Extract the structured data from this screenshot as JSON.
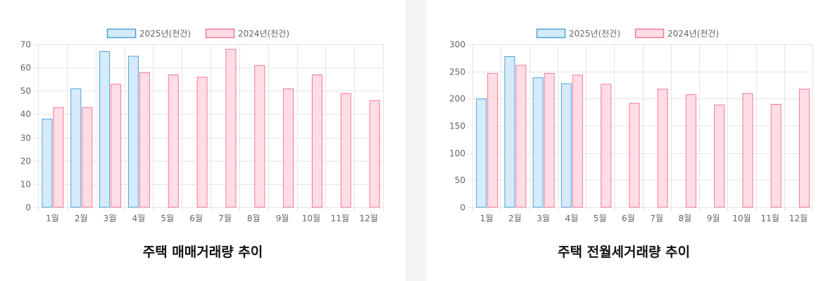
{
  "colors": {
    "series_2025_fill": "#d6ebfa",
    "series_2025_stroke": "#4fa3db",
    "series_2024_fill": "#ffdde4",
    "series_2024_stroke": "#f07a95",
    "grid": "#e6e6e6",
    "axis_text": "#666666"
  },
  "chart_data": [
    {
      "type": "bar",
      "title": "주택 매매거래량 추이",
      "categories": [
        "1월",
        "2월",
        "3월",
        "4월",
        "5월",
        "6월",
        "7월",
        "8월",
        "9월",
        "10월",
        "11월",
        "12월"
      ],
      "series": [
        {
          "name": "2025년(천건)",
          "values": [
            38,
            51,
            67,
            65,
            null,
            null,
            null,
            null,
            null,
            null,
            null,
            null
          ]
        },
        {
          "name": "2024년(천건)",
          "values": [
            43,
            43,
            53,
            58,
            57,
            56,
            68,
            61,
            51,
            57,
            49,
            46
          ]
        }
      ],
      "ylim": [
        0,
        70
      ],
      "yticks": [
        0,
        10,
        20,
        30,
        40,
        50,
        60,
        70
      ],
      "grid": true,
      "legend": "top-center"
    },
    {
      "type": "bar",
      "title": "주택 전월세거래량 추이",
      "categories": [
        "1월",
        "2월",
        "3월",
        "4월",
        "5월",
        "6월",
        "7월",
        "8월",
        "9월",
        "10월",
        "11월",
        "12월"
      ],
      "series": [
        {
          "name": "2025년(천건)",
          "values": [
            200,
            278,
            239,
            228,
            null,
            null,
            null,
            null,
            null,
            null,
            null,
            null
          ]
        },
        {
          "name": "2024년(천건)",
          "values": [
            247,
            262,
            247,
            244,
            227,
            192,
            218,
            208,
            189,
            210,
            190,
            218
          ]
        }
      ],
      "ylim": [
        0,
        300
      ],
      "yticks": [
        0,
        50,
        100,
        150,
        200,
        250,
        300
      ],
      "grid": true,
      "legend": "top-center"
    }
  ]
}
